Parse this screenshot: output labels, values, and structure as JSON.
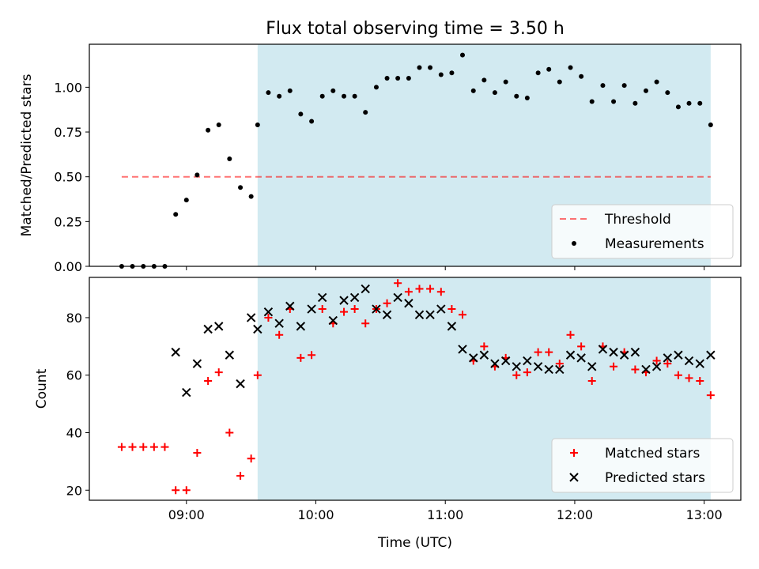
{
  "title": "Flux total observing time = 3.50 h",
  "xlabel": "Time (UTC)",
  "x_ticks": [
    "09:00",
    "10:00",
    "11:00",
    "12:00",
    "13:00"
  ],
  "colors": {
    "background_band": "#add8e6",
    "threshold": "#ff0000",
    "measurements": "#000000",
    "matched": "#ff0000",
    "predicted": "#000000"
  },
  "chart_data": [
    {
      "type": "scatter",
      "ylabel": "Matched/Predicted stars",
      "y_ticks": [
        "0.00",
        "0.25",
        "0.50",
        "0.75",
        "1.00"
      ],
      "ylim": [
        0,
        1.24
      ],
      "xlim": [
        "08:15",
        "13:17"
      ],
      "x_unit": "hours (UTC)",
      "shaded_band": {
        "from": "09:33",
        "to": "13:03"
      },
      "threshold": {
        "name": "Threshold",
        "value": 0.5,
        "x_from": "08:30",
        "x_to": "13:03"
      },
      "legend": {
        "position": "lower-right",
        "entries": [
          "Threshold",
          "Measurements"
        ]
      },
      "grid": false,
      "series": [
        {
          "name": "Measurements",
          "x": [
            8.5,
            8.583,
            8.667,
            8.75,
            8.833,
            8.917,
            9.0,
            9.083,
            9.167,
            9.25,
            9.333,
            9.417,
            9.5,
            9.55,
            9.633,
            9.717,
            9.8,
            9.883,
            9.967,
            10.05,
            10.133,
            10.217,
            10.3,
            10.383,
            10.467,
            10.55,
            10.633,
            10.717,
            10.8,
            10.883,
            10.967,
            11.05,
            11.133,
            11.217,
            11.3,
            11.383,
            11.467,
            11.55,
            11.633,
            11.717,
            11.8,
            11.883,
            11.967,
            12.05,
            12.133,
            12.217,
            12.3,
            12.383,
            12.467,
            12.55,
            12.633,
            12.717,
            12.8,
            12.883,
            12.967,
            13.05
          ],
          "y": [
            0,
            0,
            0,
            0,
            0,
            0.29,
            0.37,
            0.51,
            0.76,
            0.79,
            0.6,
            0.44,
            0.39,
            0.79,
            0.97,
            0.95,
            0.98,
            0.85,
            0.81,
            0.95,
            0.98,
            0.95,
            0.95,
            0.86,
            1.0,
            1.05,
            1.05,
            1.05,
            1.11,
            1.11,
            1.07,
            1.08,
            1.18,
            0.98,
            1.04,
            0.97,
            1.03,
            0.95,
            0.94,
            1.08,
            1.1,
            1.03,
            1.11,
            1.06,
            0.92,
            1.01,
            0.92,
            1.01,
            0.91,
            0.98,
            1.03,
            0.97,
            0.89,
            0.91,
            0.91,
            0.79
          ]
        }
      ]
    },
    {
      "type": "scatter",
      "ylabel": "Count",
      "y_ticks": [
        "20",
        "40",
        "60",
        "80"
      ],
      "ylim": [
        16.5,
        94
      ],
      "xlim": [
        "08:15",
        "13:17"
      ],
      "x_unit": "hours (UTC)",
      "shaded_band": {
        "from": "09:33",
        "to": "13:03"
      },
      "legend": {
        "position": "lower-right",
        "entries": [
          "Matched stars",
          "Predicted stars"
        ]
      },
      "grid": false,
      "series": [
        {
          "name": "Matched stars",
          "marker": "+",
          "x": [
            8.5,
            8.583,
            8.667,
            8.75,
            8.833,
            8.917,
            9.0,
            9.083,
            9.167,
            9.25,
            9.333,
            9.417,
            9.5,
            9.55,
            9.633,
            9.717,
            9.8,
            9.883,
            9.967,
            10.05,
            10.133,
            10.217,
            10.3,
            10.383,
            10.467,
            10.55,
            10.633,
            10.717,
            10.8,
            10.883,
            10.967,
            11.05,
            11.133,
            11.217,
            11.3,
            11.383,
            11.467,
            11.55,
            11.633,
            11.717,
            11.8,
            11.883,
            11.967,
            12.05,
            12.133,
            12.217,
            12.3,
            12.383,
            12.467,
            12.55,
            12.633,
            12.717,
            12.8,
            12.883,
            12.967,
            13.05
          ],
          "y": [
            35,
            35,
            35,
            35,
            35,
            20,
            20,
            33,
            58,
            61,
            40,
            25,
            31,
            60,
            80,
            74,
            83,
            66,
            67,
            83,
            78,
            82,
            83,
            78,
            83,
            85,
            92,
            89,
            90,
            90,
            89,
            83,
            81,
            65,
            70,
            63,
            66,
            60,
            61,
            68,
            68,
            64,
            74,
            70,
            58,
            70,
            63,
            68,
            62,
            61,
            65,
            64,
            60,
            59,
            58,
            53
          ]
        },
        {
          "name": "Predicted stars",
          "marker": "x",
          "x": [
            8.917,
            9.0,
            9.083,
            9.167,
            9.25,
            9.333,
            9.417,
            9.5,
            9.55,
            9.633,
            9.717,
            9.8,
            9.883,
            9.967,
            10.05,
            10.133,
            10.217,
            10.3,
            10.383,
            10.467,
            10.55,
            10.633,
            10.717,
            10.8,
            10.883,
            10.967,
            11.05,
            11.133,
            11.217,
            11.3,
            11.383,
            11.467,
            11.55,
            11.633,
            11.717,
            11.8,
            11.883,
            11.967,
            12.05,
            12.133,
            12.217,
            12.3,
            12.383,
            12.467,
            12.55,
            12.633,
            12.717,
            12.8,
            12.883,
            12.967,
            13.05
          ],
          "y": [
            68,
            54,
            64,
            76,
            77,
            67,
            57,
            80,
            76,
            82,
            78,
            84,
            77,
            83,
            87,
            79,
            86,
            87,
            90,
            83,
            81,
            87,
            85,
            81,
            81,
            83,
            77,
            69,
            66,
            67,
            64,
            65,
            63,
            65,
            63,
            62,
            62,
            67,
            66,
            63,
            69,
            68,
            67,
            68,
            62,
            63,
            66,
            67,
            65,
            64,
            67
          ]
        }
      ]
    }
  ]
}
